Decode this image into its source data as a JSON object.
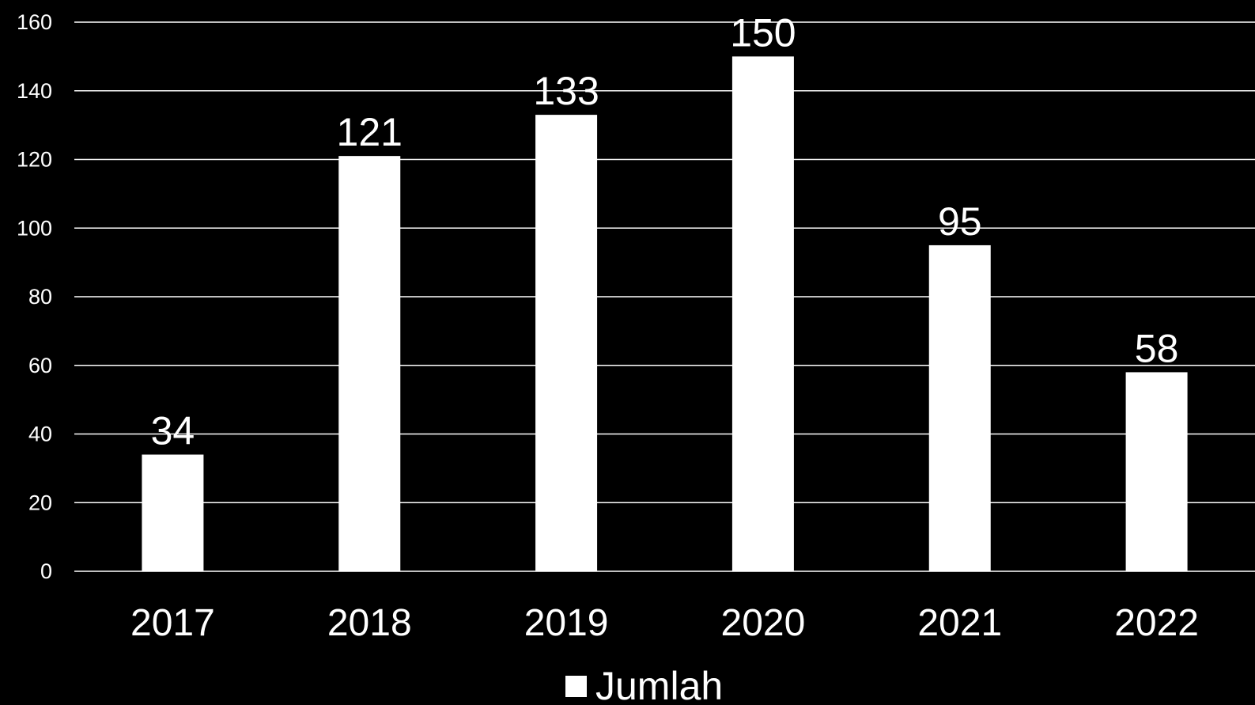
{
  "chart_data": {
    "type": "bar",
    "categories": [
      "2017",
      "2018",
      "2019",
      "2020",
      "2021",
      "2022"
    ],
    "series": [
      {
        "name": "Jumlah",
        "values": [
          34,
          121,
          133,
          150,
          95,
          58
        ]
      }
    ],
    "ylim": [
      0,
      160
    ],
    "yticks": [
      0,
      20,
      40,
      60,
      80,
      100,
      120,
      140,
      160
    ],
    "grid": true,
    "legend_position": "bottom",
    "colors": {
      "background": "#000000",
      "bar": "#ffffff",
      "grid": "#ffffff",
      "text": "#ffffff"
    }
  }
}
